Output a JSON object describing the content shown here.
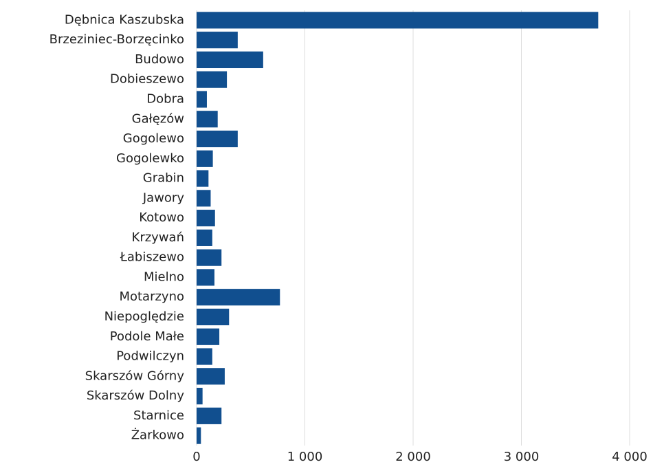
{
  "chart_data": {
    "type": "barh",
    "categories": [
      "Dębnica Kaszubska",
      "Brzeziniec-Borzęcinko",
      "Budowo",
      "Dobieszewo",
      "Dobra",
      "Gałęzów",
      "Gogolewo",
      "Gogolewko",
      "Grabin",
      "Jawory",
      "Kotowo",
      "Krzywań",
      "Łabiszewo",
      "Mielno",
      "Motarzyno",
      "Niepoględzie",
      "Podole Małe",
      "Podwilczyn",
      "Skarszów Górny",
      "Skarszów Dolny",
      "Starnice",
      "Żarkowo"
    ],
    "values": [
      3710,
      380,
      615,
      280,
      95,
      195,
      380,
      150,
      110,
      130,
      170,
      145,
      230,
      165,
      770,
      300,
      210,
      145,
      260,
      55,
      230,
      40
    ],
    "color": "#114f8f",
    "xlim": [
      0,
      4000
    ],
    "xticks": [
      0,
      {
        "value": 1000,
        "label": "1 000"
      },
      {
        "value": 2000,
        "label": "2 000"
      },
      {
        "value": 3000,
        "label": "3 000"
      },
      {
        "value": 4000,
        "label": "4 000"
      }
    ],
    "grid": true
  }
}
